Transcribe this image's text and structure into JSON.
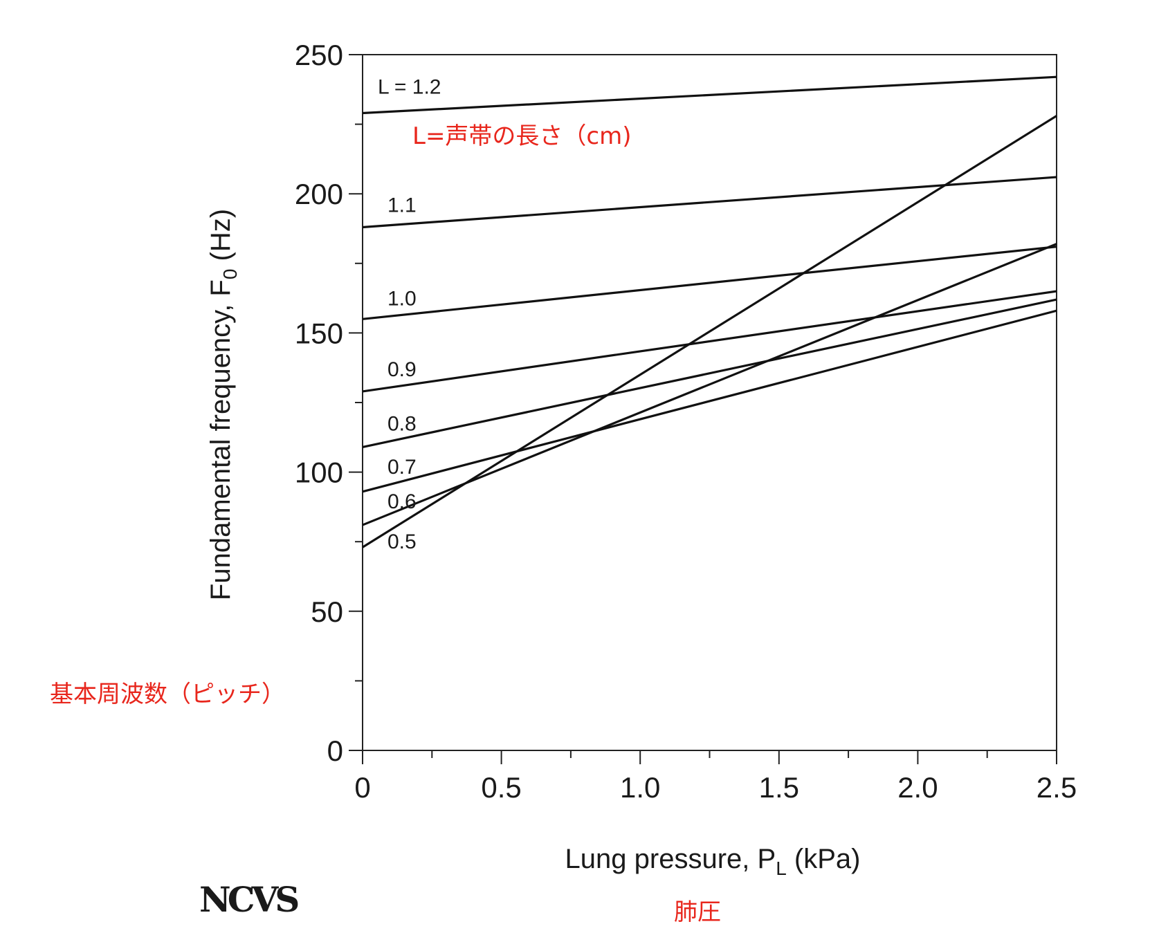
{
  "chart_data": {
    "type": "line",
    "xlabel": {
      "main": "Lung pressure, P",
      "sub": "L",
      "unit": " (kPa)"
    },
    "ylabel": {
      "main": "Fundamental frequency, F",
      "sub": "0",
      "unit": " (Hz)"
    },
    "xlim": [
      0,
      2.5
    ],
    "ylim": [
      0,
      250
    ],
    "x_ticks": [
      "0",
      "0.5",
      "1.0",
      "1.5",
      "2.0",
      "2.5"
    ],
    "x_tick_values": [
      0,
      0.5,
      1.0,
      1.5,
      2.0,
      2.5
    ],
    "y_ticks": [
      "0",
      "50",
      "100",
      "150",
      "200",
      "250"
    ],
    "y_tick_values": [
      0,
      50,
      100,
      150,
      200,
      250
    ],
    "grid": false,
    "series": [
      {
        "name": "L = 1.2",
        "x": [
          0,
          2.5
        ],
        "y": [
          229,
          242
        ]
      },
      {
        "name": "1.1",
        "x": [
          0,
          2.5
        ],
        "y": [
          188,
          206
        ]
      },
      {
        "name": "1.0",
        "x": [
          0,
          2.5
        ],
        "y": [
          155,
          181
        ]
      },
      {
        "name": "0.9",
        "x": [
          0,
          2.5
        ],
        "y": [
          129,
          165
        ]
      },
      {
        "name": "0.8",
        "x": [
          0,
          2.5
        ],
        "y": [
          109,
          162
        ]
      },
      {
        "name": "0.7",
        "x": [
          0,
          2.5
        ],
        "y": [
          93,
          158
        ]
      },
      {
        "name": "0.6",
        "x": [
          0,
          2.5
        ],
        "y": [
          81,
          182
        ]
      },
      {
        "name": "0.5",
        "x": [
          0,
          2.5
        ],
        "y": [
          73,
          228
        ]
      }
    ],
    "annotations": {
      "length_note": "L=声帯の長さ（cm)",
      "pitch_note": "基本周波数（ピッチ）",
      "pressure_note": "肺圧"
    }
  },
  "logo_text": "NCVS"
}
